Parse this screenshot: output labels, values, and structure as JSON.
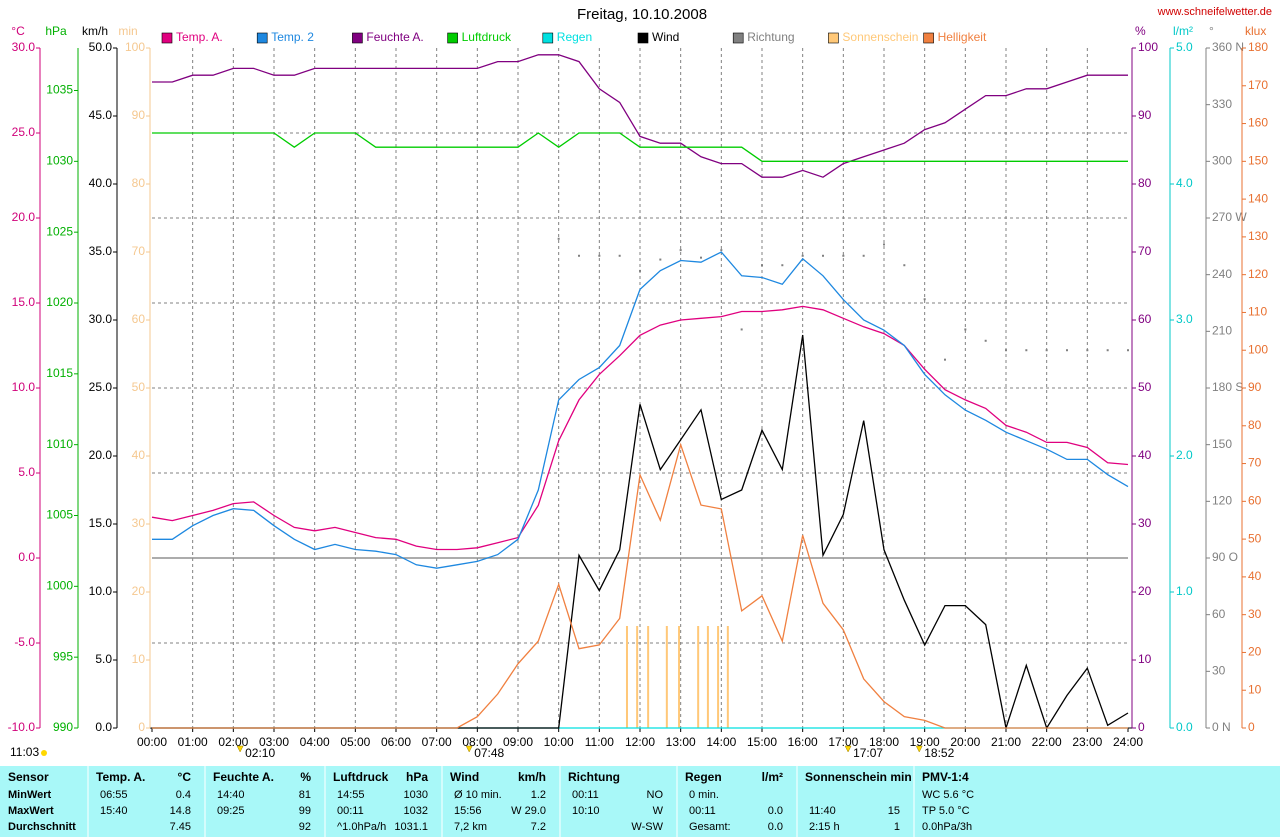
{
  "chart_data": {
    "type": "line",
    "title": "Freitag, 10.10.2008",
    "source": "www.schneifelwetter.de",
    "daylight": "11:03",
    "xlim": [
      0,
      24
    ],
    "xticks": [
      {
        "value": 0,
        "label": "00:00"
      },
      {
        "value": 1,
        "label": "01:00"
      },
      {
        "value": 2,
        "label": "02:00"
      },
      {
        "value": 3,
        "label": "03:00"
      },
      {
        "value": 4,
        "label": "04:00"
      },
      {
        "value": 5,
        "label": "05:00"
      },
      {
        "value": 6,
        "label": "06:00"
      },
      {
        "value": 7,
        "label": "07:00"
      },
      {
        "value": 8,
        "label": "08:00"
      },
      {
        "value": 9,
        "label": "09:00"
      },
      {
        "value": 10,
        "label": "10:00"
      },
      {
        "value": 11,
        "label": "11:00"
      },
      {
        "value": 12,
        "label": "12:00"
      },
      {
        "value": 13,
        "label": "13:00"
      },
      {
        "value": 14,
        "label": "14:00"
      },
      {
        "value": 15,
        "label": "15:00"
      },
      {
        "value": 16,
        "label": "16:00"
      },
      {
        "value": 17,
        "label": "17:00"
      },
      {
        "value": 18,
        "label": "18:00"
      },
      {
        "value": 19,
        "label": "19:00"
      },
      {
        "value": 20,
        "label": "20:00"
      },
      {
        "value": 21,
        "label": "21:00"
      },
      {
        "value": 22,
        "label": "22:00"
      },
      {
        "value": 23,
        "label": "23:00"
      },
      {
        "value": 24,
        "label": "24:00"
      }
    ],
    "grid": true,
    "axes": [
      {
        "id": "temp",
        "label": "°C",
        "side": "left",
        "color": "#d0007a",
        "grid": true,
        "lim": [
          -10,
          30
        ],
        "ticks": [
          {
            "value": 30,
            "label": "30.0"
          },
          {
            "value": 25,
            "label": "25.0"
          },
          {
            "value": 20,
            "label": "20.0"
          },
          {
            "value": 15,
            "label": "15.0"
          },
          {
            "value": 10,
            "label": "10.0"
          },
          {
            "value": 5,
            "label": "5.0"
          },
          {
            "value": 0,
            "label": "0.0"
          },
          {
            "value": -5,
            "label": "-5.0"
          },
          {
            "value": -10,
            "label": "-10.0"
          }
        ]
      },
      {
        "id": "hpa",
        "label": "hPa",
        "side": "left",
        "color": "#00b000",
        "lim": [
          990,
          1038
        ],
        "ticks": [
          1035,
          1030,
          1025,
          1020,
          1015,
          1010,
          1005,
          1000,
          995,
          990
        ]
      },
      {
        "id": "kmh",
        "label": "km/h",
        "side": "left",
        "color": "#000000",
        "lim": [
          0,
          50
        ],
        "ticks": [
          {
            "value": 50,
            "label": "50.0"
          },
          {
            "value": 45,
            "label": "45.0"
          },
          {
            "value": 40,
            "label": "40.0"
          },
          {
            "value": 35,
            "label": "35.0"
          },
          {
            "value": 30,
            "label": "30.0"
          },
          {
            "value": 25,
            "label": "25.0"
          },
          {
            "value": 20,
            "label": "20.0"
          },
          {
            "value": 15,
            "label": "15.0"
          },
          {
            "value": 10,
            "label": "10.0"
          },
          {
            "value": 5,
            "label": "5.0"
          },
          {
            "value": 0,
            "label": "0.0"
          }
        ]
      },
      {
        "id": "min",
        "label": "min",
        "side": "left",
        "color": "#f5c890",
        "lim": [
          0,
          100
        ],
        "ticks": [
          100,
          90,
          80,
          70,
          60,
          50,
          40,
          30,
          20,
          10,
          0
        ]
      },
      {
        "id": "pct",
        "label": "%",
        "side": "right",
        "color": "#800080",
        "lim": [
          0,
          100
        ],
        "ticks": [
          100,
          90,
          80,
          70,
          60,
          50,
          40,
          30,
          20,
          10,
          0
        ]
      },
      {
        "id": "rain",
        "label": "l/m²",
        "side": "right",
        "color": "#00c8c8",
        "lim": [
          0,
          5
        ],
        "ticks": [
          {
            "value": 5,
            "label": "5.0"
          },
          {
            "value": 4,
            "label": "4.0"
          },
          {
            "value": 3,
            "label": "3.0"
          },
          {
            "value": 2,
            "label": "2.0"
          },
          {
            "value": 1,
            "label": "1.0"
          },
          {
            "value": 0,
            "label": "0.0"
          }
        ]
      },
      {
        "id": "deg",
        "label": "°",
        "side": "right",
        "color": "#808080",
        "lim": [
          0,
          360
        ],
        "ticks": [
          {
            "value": 360,
            "label": "360 N"
          },
          330,
          300,
          {
            "value": 270,
            "label": "270 W"
          },
          240,
          210,
          {
            "value": 180,
            "label": "180 S"
          },
          150,
          120,
          {
            "value": 90,
            "label": "90  O"
          },
          60,
          30,
          {
            "value": 0,
            "label": "0   N"
          }
        ]
      },
      {
        "id": "klux",
        "label": "klux",
        "side": "right",
        "color": "#e87030",
        "lim": [
          0,
          180
        ],
        "ticks": [
          180,
          170,
          160,
          150,
          140,
          130,
          120,
          110,
          100,
          90,
          80,
          70,
          60,
          50,
          40,
          30,
          20,
          10,
          0
        ]
      }
    ],
    "x": [
      0,
      0.5,
      1,
      1.5,
      2,
      2.5,
      3,
      3.5,
      4,
      4.5,
      5,
      5.5,
      6,
      6.5,
      7,
      7.5,
      8,
      8.5,
      9,
      9.5,
      10,
      10.5,
      11,
      11.5,
      12,
      12.5,
      13,
      13.5,
      14,
      14.5,
      15,
      15.5,
      16,
      16.5,
      17,
      17.5,
      18,
      18.5,
      19,
      19.5,
      20,
      20.5,
      21,
      21.5,
      22,
      22.5,
      23,
      23.5,
      24
    ],
    "series": [
      {
        "name": "Temp. A.",
        "color": "#e0007f",
        "axis": "temp",
        "type": "line",
        "values": [
          2.4,
          2.2,
          2.5,
          2.8,
          3.2,
          3.3,
          2.5,
          1.8,
          1.6,
          1.8,
          1.5,
          1.2,
          1.1,
          0.7,
          0.5,
          0.5,
          0.6,
          0.9,
          1.2,
          3.1,
          6.9,
          9.3,
          10.8,
          11.9,
          13.1,
          13.7,
          14.0,
          14.1,
          14.2,
          14.5,
          14.5,
          14.6,
          14.8,
          14.6,
          14.1,
          13.6,
          13.2,
          12.5,
          11.1,
          9.9,
          9.3,
          8.8,
          7.8,
          7.4,
          6.8,
          6.8,
          6.5,
          5.6,
          5.5
        ]
      },
      {
        "name": "Temp. 2",
        "color": "#1e88e0",
        "axis": "temp",
        "type": "line",
        "values": [
          1.1,
          1.1,
          1.9,
          2.5,
          2.9,
          2.8,
          1.9,
          1.1,
          0.5,
          0.8,
          0.5,
          0.4,
          0.2,
          -0.4,
          -0.6,
          -0.4,
          -0.2,
          0.2,
          1.1,
          4.0,
          9.3,
          10.5,
          11.2,
          12.5,
          15.8,
          16.9,
          17.5,
          17.4,
          18.0,
          16.6,
          16.5,
          16.1,
          17.6,
          16.6,
          15.2,
          14.0,
          13.4,
          12.5,
          10.8,
          9.6,
          8.7,
          8.1,
          7.4,
          6.9,
          6.4,
          5.8,
          5.8,
          4.9,
          4.2
        ]
      },
      {
        "name": "Feuchte A.",
        "color": "#800080",
        "axis": "pct",
        "type": "line",
        "values": [
          95,
          95,
          96,
          96,
          97,
          97,
          96,
          96,
          97,
          97,
          97,
          97,
          97,
          97,
          97,
          97,
          97,
          98,
          98,
          99,
          99,
          98,
          94,
          92,
          87,
          86,
          86,
          84,
          83,
          83,
          81,
          81,
          82,
          81,
          83,
          84,
          85,
          86,
          88,
          89,
          91,
          93,
          93,
          94,
          94,
          95,
          96,
          96,
          96
        ]
      },
      {
        "name": "Luftdruck",
        "color": "#00cc00",
        "axis": "hpa",
        "type": "line",
        "values": [
          1032,
          1032,
          1032,
          1032,
          1032,
          1032,
          1032,
          1031,
          1032,
          1032,
          1032,
          1031,
          1031,
          1031,
          1031,
          1031,
          1031,
          1031,
          1031,
          1032,
          1031,
          1032,
          1032,
          1032,
          1031,
          1031,
          1031,
          1031,
          1031,
          1031,
          1030,
          1030,
          1030,
          1030,
          1030,
          1030,
          1030,
          1030,
          1030,
          1030,
          1030,
          1030,
          1030,
          1030,
          1030,
          1030,
          1030,
          1030,
          1030
        ]
      },
      {
        "name": "Regen",
        "color": "#00e0e0",
        "axis": "rain",
        "type": "line",
        "values": [
          0,
          0,
          0,
          0,
          0,
          0,
          0,
          0,
          0,
          0,
          0,
          0,
          0,
          0,
          0,
          0,
          0,
          0,
          0,
          0,
          0,
          0,
          0,
          0,
          0,
          0,
          0,
          0,
          0,
          0,
          0,
          0,
          0,
          0,
          0,
          0,
          0,
          0,
          0,
          0,
          0,
          0,
          0,
          0,
          0,
          0,
          0,
          0,
          0
        ]
      },
      {
        "name": "Wind",
        "color": "#000000",
        "axis": "kmh",
        "type": "line",
        "values": [
          0,
          0,
          0,
          0,
          0,
          0,
          0,
          0,
          0,
          0,
          0,
          0,
          0,
          0,
          0,
          0,
          0,
          0,
          0,
          0,
          0,
          12.7,
          10.1,
          13.1,
          23.8,
          19.0,
          21.2,
          23.4,
          16.8,
          17.5,
          21.9,
          19.0,
          28.9,
          12.7,
          15.7,
          22.6,
          13.1,
          9.4,
          6.1,
          9.0,
          9.0,
          7.6,
          0,
          4.6,
          0,
          2.4,
          4.4,
          0.2,
          1.1
        ]
      },
      {
        "name": "Richtung",
        "color": "#808080",
        "axis": "deg",
        "type": "scatter",
        "values": [
          null,
          null,
          null,
          null,
          null,
          null,
          null,
          null,
          null,
          null,
          null,
          null,
          null,
          null,
          null,
          null,
          null,
          null,
          null,
          null,
          259,
          250,
          250,
          250,
          242,
          248,
          253,
          249,
          253,
          211,
          245,
          245,
          250,
          250,
          250,
          250,
          256,
          245,
          227,
          195,
          211,
          205,
          200,
          200,
          200,
          200,
          200,
          200,
          200
        ]
      },
      {
        "name": "Sonnenschein",
        "color": "#ffc878",
        "axis": "min",
        "type": "bar",
        "x": [
          11.68,
          11.93,
          12.2,
          12.66,
          12.96,
          13.43,
          13.67,
          13.92,
          14.16
        ],
        "values": [
          15,
          15,
          15,
          15,
          15,
          15,
          15,
          15,
          15
        ]
      },
      {
        "name": "Helligkeit",
        "color": "#f08040",
        "axis": "klux",
        "type": "line",
        "values": [
          0,
          0,
          0,
          0,
          0,
          0,
          0,
          0,
          0,
          0,
          0,
          0,
          0,
          0,
          0,
          0,
          3,
          9,
          17,
          23,
          38,
          21,
          22,
          29,
          67,
          55,
          75,
          59,
          58,
          31,
          35,
          23,
          51,
          33,
          26,
          13,
          7,
          3,
          2,
          0,
          0,
          0,
          0,
          0,
          0,
          0,
          0,
          0,
          0
        ]
      }
    ],
    "annotations": [
      {
        "text": "02:10",
        "x": 2.1667
      },
      {
        "text": "07:48",
        "x": 7.8
      },
      {
        "text": "17:07",
        "x": 17.1167
      },
      {
        "text": "18:52",
        "x": 18.8667
      }
    ]
  },
  "table": {
    "columns": [
      {
        "title": "Sensor",
        "rows": [
          "MinWert",
          "MaxWert",
          "Durchschnitt"
        ]
      },
      {
        "title": "Temp. A.",
        "unit": "°C",
        "rows": [
          {
            "time": "06:55",
            "value": "0.4"
          },
          {
            "time": "15:40",
            "value": "14.8"
          },
          {
            "value": "7.45"
          }
        ]
      },
      {
        "title": "Feuchte A.",
        "unit": "%",
        "rows": [
          {
            "time": "14:40",
            "value": "81"
          },
          {
            "time": "09:25",
            "value": "99"
          },
          {
            "value": "92"
          }
        ]
      },
      {
        "title": "Luftdruck",
        "unit": "hPa",
        "rows": [
          {
            "time": "14:55",
            "value": "1030"
          },
          {
            "time": "00:11",
            "value": "1032"
          },
          {
            "time": "^1.0hPa/h",
            "value": "1031.1"
          }
        ]
      },
      {
        "title": "Wind",
        "unit": "km/h",
        "rows": [
          {
            "time": "Ø 10 min.",
            "value": "1.2"
          },
          {
            "time": "15:56",
            "value": "W 29.0"
          },
          {
            "time": "7,2 km",
            "value": "7.2"
          }
        ]
      },
      {
        "title": "Richtung",
        "rows": [
          {
            "time": "00:11",
            "value": "NO"
          },
          {
            "time": "10:10",
            "value": "W"
          },
          {
            "value": "W-SW"
          }
        ]
      },
      {
        "title": "Regen",
        "unit": "l/m²",
        "rows": [
          {
            "time": "0 min."
          },
          {
            "time": "00:11",
            "value": "0.0"
          },
          {
            "time": "Gesamt:",
            "value": "0.0"
          }
        ]
      },
      {
        "title": "Sonnenschein min",
        "rows": [
          null,
          {
            "time": "11:40",
            "value": "15"
          },
          {
            "time": "2:15 h",
            "value": "1"
          }
        ]
      },
      {
        "title": "PMV-1:4",
        "rows": [
          "WC 5.6 °C",
          "TP 5.0 °C",
          "0.0hPa/3h"
        ]
      }
    ]
  }
}
